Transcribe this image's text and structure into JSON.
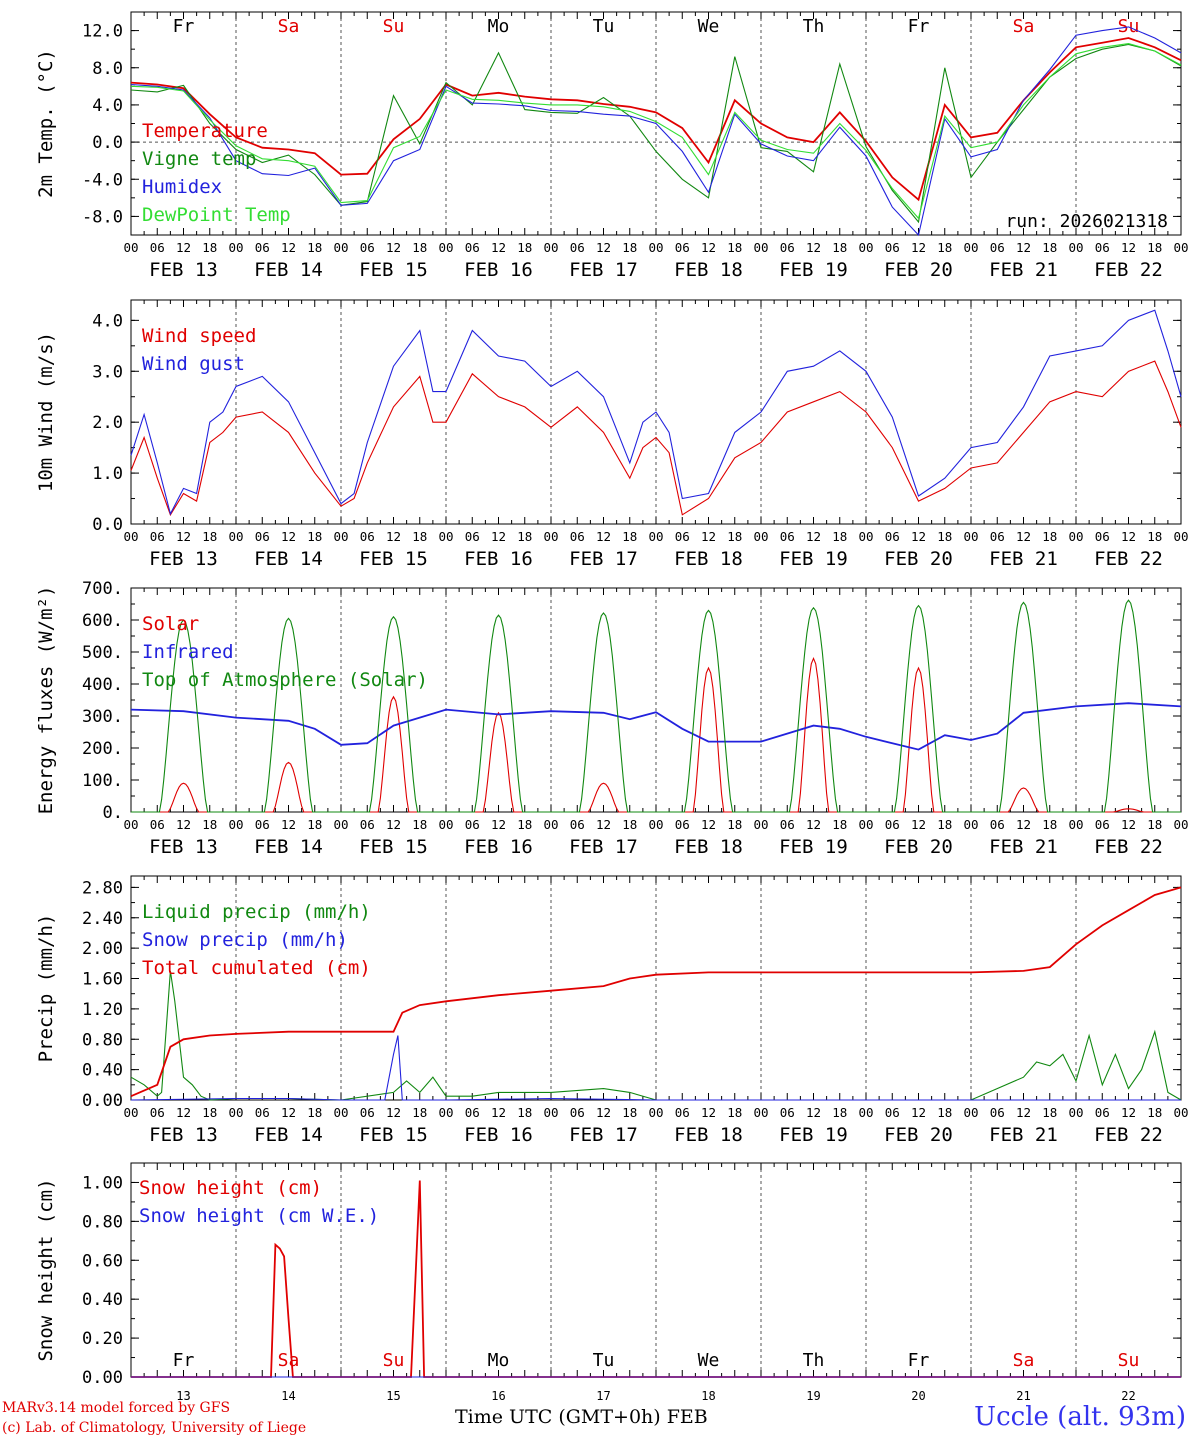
{
  "figure": {
    "credit_line1": "MARv3.14 model forced by GFS",
    "credit_line2": "(c) Lab. of Climatology, University of Liege",
    "station": "Uccle (alt. 93m)",
    "time_axis_title": "Time UTC (GMT+0h)",
    "month_label": "FEB",
    "run_label": "run: 2026021318",
    "hour_ticks": [
      "00",
      "06",
      "12",
      "18"
    ],
    "date_labels": [
      "FEB 13",
      "FEB 14",
      "FEB 15",
      "FEB 16",
      "FEB 17",
      "FEB 18",
      "FEB 19",
      "FEB 20",
      "FEB 21",
      "FEB 22"
    ],
    "day_names": [
      "Fr",
      "Sa",
      "Su",
      "Mo",
      "Tu",
      "We",
      "Th",
      "Fr",
      "Sa",
      "Su"
    ],
    "day_numbers": [
      "13",
      "14",
      "15",
      "16",
      "17",
      "18",
      "19",
      "20",
      "21",
      "22"
    ],
    "weekend_color": "#e00000",
    "weekday_color": "#000000"
  },
  "chart_data": [
    {
      "type": "line",
      "ylabel": "2m Temp. (°C)",
      "ylim": [
        -10,
        14
      ],
      "yticks": [
        -8,
        -4,
        0,
        4,
        8,
        12
      ],
      "ytick_labels": [
        "-8.0",
        "-4.0",
        "0.0",
        "4.0",
        "8.0",
        "12.0"
      ],
      "zero_line": true,
      "x_unit": "hours since 13 Feb 00 UTC",
      "series": [
        {
          "name": "Temperature",
          "color": "#e00000",
          "x": [
            0,
            6,
            12,
            18,
            24,
            30,
            36,
            42,
            48,
            54,
            60,
            66,
            72,
            78,
            84,
            90,
            96,
            102,
            108,
            114,
            120,
            126,
            132,
            138,
            144,
            150,
            156,
            162,
            168,
            174,
            180,
            186,
            192,
            198,
            204,
            210,
            216,
            222,
            228,
            234,
            240
          ],
          "values": [
            6.4,
            6.2,
            5.8,
            3.0,
            0.5,
            -0.6,
            -0.8,
            -1.2,
            -3.5,
            -3.4,
            0.3,
            2.5,
            6.2,
            5.0,
            5.3,
            4.9,
            4.6,
            4.5,
            4.1,
            3.8,
            3.2,
            1.5,
            -2.2,
            4.5,
            2.0,
            0.5,
            0.0,
            3.2,
            0.1,
            -3.8,
            -6.2,
            4.0,
            0.5,
            1.0,
            4.5,
            7.5,
            10.2,
            10.7,
            11.2,
            10.2,
            8.8
          ]
        },
        {
          "name": "Vigne temp",
          "color": "#118811",
          "x": [
            0,
            6,
            12,
            18,
            24,
            30,
            36,
            42,
            48,
            54,
            60,
            66,
            72,
            78,
            84,
            90,
            96,
            102,
            108,
            114,
            120,
            126,
            132,
            138,
            144,
            150,
            156,
            162,
            168,
            174,
            180,
            186,
            192,
            198,
            204,
            210,
            216,
            222,
            228,
            234,
            240
          ],
          "values": [
            5.6,
            5.4,
            6.1,
            2.0,
            -0.8,
            -2.2,
            -1.4,
            -3.5,
            -6.8,
            -6.4,
            5.0,
            -0.2,
            6.4,
            4.0,
            9.6,
            3.5,
            3.2,
            3.1,
            4.8,
            2.8,
            -1.0,
            -4.0,
            -6.0,
            9.2,
            -0.6,
            -1.0,
            -3.2,
            8.4,
            -0.5,
            -5.2,
            -8.6,
            8.0,
            -3.8,
            0.0,
            3.5,
            7.0,
            9.0,
            10.0,
            10.5,
            9.8,
            8.2
          ]
        },
        {
          "name": "Humidex",
          "color": "#2222dd",
          "x": [
            0,
            6,
            12,
            18,
            24,
            30,
            36,
            42,
            48,
            54,
            60,
            66,
            72,
            78,
            84,
            90,
            96,
            102,
            108,
            114,
            120,
            126,
            132,
            138,
            144,
            150,
            156,
            162,
            168,
            174,
            180,
            186,
            192,
            198,
            204,
            210,
            216,
            222,
            228,
            234,
            240
          ],
          "values": [
            6.2,
            6.0,
            5.6,
            2.6,
            -2.0,
            -3.4,
            -3.6,
            -2.8,
            -6.8,
            -6.6,
            -2.0,
            -0.8,
            6.0,
            4.2,
            4.1,
            3.9,
            3.4,
            3.3,
            3.0,
            2.8,
            2.0,
            -1.0,
            -5.4,
            3.0,
            -0.2,
            -1.5,
            -2.0,
            1.6,
            -1.5,
            -7.0,
            -10.0,
            2.5,
            -1.6,
            -0.8,
            4.5,
            7.8,
            11.5,
            12.0,
            12.4,
            11.2,
            9.6
          ]
        },
        {
          "name": "DewPoint Temp",
          "color": "#33dd33",
          "x": [
            0,
            6,
            12,
            18,
            24,
            30,
            36,
            42,
            48,
            54,
            60,
            66,
            72,
            78,
            84,
            90,
            96,
            102,
            108,
            114,
            120,
            126,
            132,
            138,
            144,
            150,
            156,
            162,
            168,
            174,
            180,
            186,
            192,
            198,
            204,
            210,
            216,
            222,
            228,
            234,
            240
          ],
          "values": [
            6.0,
            5.9,
            5.5,
            2.4,
            -0.4,
            -1.8,
            -2.0,
            -2.6,
            -6.5,
            -6.3,
            -0.6,
            0.6,
            5.6,
            4.6,
            4.5,
            4.2,
            4.0,
            4.0,
            3.8,
            3.3,
            2.2,
            0.5,
            -3.5,
            3.2,
            0.2,
            -0.8,
            -1.2,
            2.0,
            -0.9,
            -5.0,
            -8.2,
            2.8,
            -0.6,
            0.0,
            4.0,
            7.0,
            9.5,
            10.2,
            10.6,
            9.8,
            8.3
          ]
        }
      ]
    },
    {
      "type": "line",
      "ylabel": "10m Wind (m/s)",
      "ylim": [
        0,
        4.4
      ],
      "yticks": [
        0,
        1,
        2,
        3,
        4
      ],
      "ytick_labels": [
        "0.0",
        "1.0",
        "2.0",
        "3.0",
        "4.0"
      ],
      "series": [
        {
          "name": "Wind speed",
          "color": "#e00000",
          "x": [
            0,
            3,
            6,
            9,
            12,
            15,
            18,
            21,
            24,
            30,
            36,
            42,
            48,
            51,
            54,
            60,
            66,
            69,
            72,
            78,
            84,
            90,
            96,
            102,
            108,
            114,
            117,
            120,
            123,
            126,
            132,
            138,
            144,
            150,
            156,
            162,
            168,
            174,
            180,
            186,
            192,
            198,
            204,
            210,
            216,
            222,
            228,
            234,
            237,
            240
          ],
          "values": [
            1.05,
            1.7,
            0.9,
            0.18,
            0.6,
            0.45,
            1.6,
            1.8,
            2.1,
            2.2,
            1.8,
            1.0,
            0.35,
            0.5,
            1.2,
            2.3,
            2.9,
            2.0,
            2.0,
            2.95,
            2.5,
            2.3,
            1.9,
            2.3,
            1.8,
            0.9,
            1.5,
            1.7,
            1.4,
            0.18,
            0.5,
            1.3,
            1.6,
            2.2,
            2.4,
            2.6,
            2.2,
            1.5,
            0.45,
            0.7,
            1.1,
            1.2,
            1.8,
            2.4,
            2.6,
            2.5,
            3.0,
            3.2,
            2.6,
            1.9
          ]
        },
        {
          "name": "Wind gust",
          "color": "#2222dd",
          "x": [
            0,
            3,
            6,
            9,
            12,
            15,
            18,
            21,
            24,
            30,
            36,
            42,
            48,
            51,
            54,
            60,
            66,
            69,
            72,
            78,
            84,
            90,
            96,
            102,
            108,
            114,
            117,
            120,
            123,
            126,
            132,
            138,
            144,
            150,
            156,
            162,
            168,
            174,
            180,
            186,
            192,
            198,
            204,
            210,
            216,
            222,
            228,
            234,
            237,
            240
          ],
          "values": [
            1.35,
            2.15,
            1.2,
            0.2,
            0.7,
            0.6,
            2.0,
            2.2,
            2.7,
            2.9,
            2.4,
            1.4,
            0.4,
            0.6,
            1.6,
            3.1,
            3.8,
            2.6,
            2.6,
            3.8,
            3.3,
            3.2,
            2.7,
            3.0,
            2.5,
            1.2,
            2.0,
            2.2,
            1.8,
            0.5,
            0.6,
            1.8,
            2.2,
            3.0,
            3.1,
            3.4,
            3.0,
            2.1,
            0.55,
            0.9,
            1.5,
            1.6,
            2.3,
            3.3,
            3.4,
            3.5,
            4.0,
            4.2,
            3.4,
            2.5
          ]
        }
      ]
    },
    {
      "type": "line",
      "ylabel": "Energy fluxes (W/m²)",
      "ylim": [
        0,
        700
      ],
      "yticks": [
        0,
        100,
        200,
        300,
        400,
        500,
        600,
        700
      ],
      "ytick_labels": [
        "0.",
        "100.",
        "200.",
        "300.",
        "400.",
        "500.",
        "600.",
        "700."
      ],
      "series": [
        {
          "name": "Solar",
          "color": "#e00000",
          "peak_hour_utc": 12,
          "daily_peak_values": [
            90,
            155,
            360,
            310,
            90,
            450,
            480,
            450,
            75,
            10
          ]
        },
        {
          "name": "Infrared",
          "color": "#2222dd",
          "x": [
            0,
            12,
            24,
            36,
            42,
            48,
            54,
            60,
            72,
            84,
            96,
            108,
            114,
            120,
            126,
            132,
            144,
            156,
            162,
            168,
            180,
            186,
            192,
            198,
            204,
            216,
            228,
            240
          ],
          "values": [
            320,
            315,
            295,
            285,
            260,
            210,
            215,
            270,
            320,
            305,
            315,
            310,
            290,
            312,
            260,
            220,
            220,
            270,
            260,
            235,
            195,
            240,
            225,
            245,
            310,
            330,
            340,
            330
          ]
        },
        {
          "name": "Top of Atmosphere (Solar)",
          "color": "#118811",
          "peak_hour_utc": 12,
          "daily_peak_values": [
            600,
            605,
            610,
            615,
            622,
            630,
            638,
            645,
            655,
            662
          ]
        }
      ]
    },
    {
      "type": "line",
      "ylabel": "Precip (mm/h)",
      "ylim": [
        0,
        2.95
      ],
      "yticks": [
        0,
        0.4,
        0.8,
        1.2,
        1.6,
        2.0,
        2.4,
        2.8
      ],
      "ytick_labels": [
        "0.00",
        "0.40",
        "0.80",
        "1.20",
        "1.60",
        "2.00",
        "2.40",
        "2.80"
      ],
      "series": [
        {
          "name": "Liquid precip (mm/h)",
          "color": "#118811",
          "x": [
            0,
            3,
            6,
            7,
            9,
            10,
            12,
            14,
            16,
            18,
            24,
            36,
            48,
            60,
            63,
            66,
            69,
            72,
            78,
            84,
            96,
            108,
            114,
            120,
            150,
            192,
            204,
            207,
            210,
            213,
            216,
            219,
            222,
            225,
            228,
            231,
            234,
            237,
            240
          ],
          "values": [
            0.3,
            0.2,
            0.05,
            0.1,
            1.7,
            1.3,
            0.3,
            0.2,
            0.05,
            0.0,
            0.02,
            0.02,
            0.0,
            0.1,
            0.25,
            0.1,
            0.3,
            0.05,
            0.05,
            0.1,
            0.1,
            0.15,
            0.1,
            0.0,
            0.0,
            0.0,
            0.3,
            0.5,
            0.45,
            0.6,
            0.25,
            0.85,
            0.2,
            0.6,
            0.15,
            0.4,
            0.9,
            0.1,
            0.0
          ]
        },
        {
          "name": "Snow precip (mm/h)",
          "color": "#2222dd",
          "x": [
            0,
            24,
            36,
            48,
            58,
            60,
            61,
            62,
            66,
            72,
            96,
            120,
            144,
            240
          ],
          "values": [
            0.0,
            0.02,
            0.02,
            0.0,
            0.0,
            0.6,
            0.85,
            0.0,
            0.0,
            0.0,
            0.02,
            0.0,
            0.0,
            0.0
          ]
        },
        {
          "name": "Total cumulated (cm)",
          "color": "#e00000",
          "x": [
            0,
            6,
            9,
            12,
            18,
            24,
            36,
            48,
            60,
            62,
            66,
            72,
            84,
            96,
            108,
            114,
            120,
            132,
            144,
            168,
            192,
            204,
            210,
            216,
            222,
            228,
            234,
            240
          ],
          "values": [
            0.05,
            0.2,
            0.7,
            0.8,
            0.85,
            0.87,
            0.9,
            0.9,
            0.9,
            1.15,
            1.25,
            1.3,
            1.38,
            1.44,
            1.5,
            1.6,
            1.65,
            1.68,
            1.68,
            1.68,
            1.68,
            1.7,
            1.75,
            2.05,
            2.3,
            2.5,
            2.7,
            2.8
          ]
        }
      ]
    },
    {
      "type": "line",
      "ylabel": "Snow height (cm)",
      "ylim": [
        0,
        1.1
      ],
      "yticks": [
        0,
        0.2,
        0.4,
        0.6,
        0.8,
        1.0
      ],
      "ytick_labels": [
        "0.00",
        "0.20",
        "0.40",
        "0.60",
        "0.80",
        "1.00"
      ],
      "series": [
        {
          "name": "Snow height (cm)",
          "color": "#e00000",
          "x": [
            0,
            32,
            33,
            34,
            35,
            36,
            37,
            64,
            65,
            66,
            67,
            240
          ],
          "values": [
            0,
            0,
            0.68,
            0.66,
            0.62,
            0.3,
            0,
            0,
            0.5,
            1.01,
            0,
            0
          ]
        },
        {
          "name": "Snow height (cm W.E.)",
          "color": "#2222dd",
          "x": [
            0,
            240
          ],
          "values": [
            0,
            0
          ]
        }
      ]
    }
  ]
}
